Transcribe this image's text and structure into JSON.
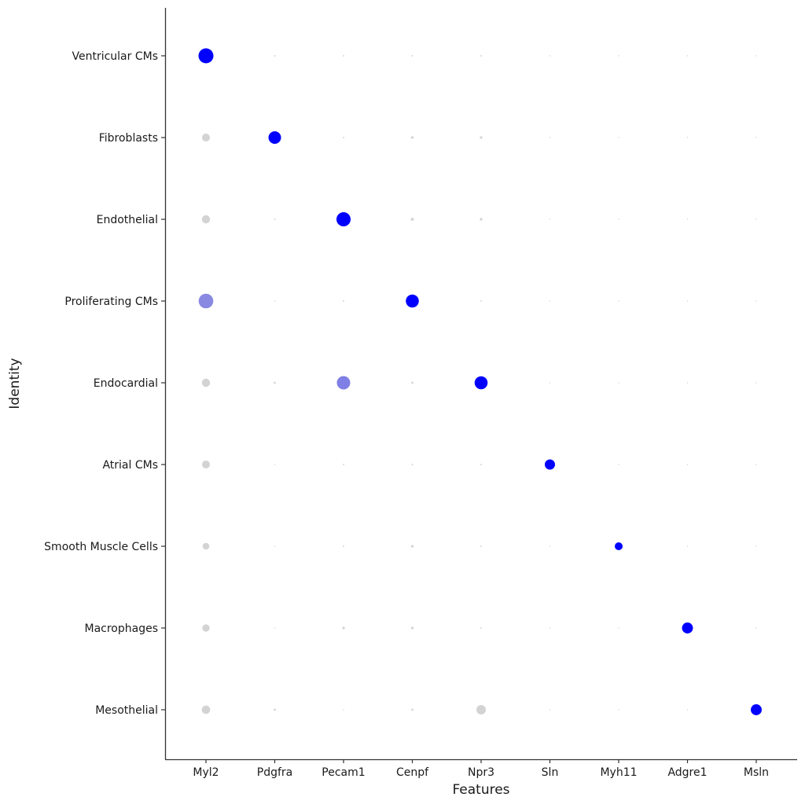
{
  "chart_data": {
    "type": "scatter",
    "subtype": "dot-plot",
    "xlabel": "Features",
    "ylabel": "Identity",
    "features": [
      "Myl2",
      "Pdgfra",
      "Pecam1",
      "Cenpf",
      "Npr3",
      "Sln",
      "Myh11",
      "Adgre1",
      "Msln"
    ],
    "identities": [
      "Ventricular CMs",
      "Fibroblasts",
      "Endothelial",
      "Proliferating CMs",
      "Endocardial",
      "Atrial CMs",
      "Smooth Muscle Cells",
      "Macrophages",
      "Mesothelial"
    ],
    "color_low": "#d3d3d3",
    "color_high": "#0000ff",
    "pct_expressed": [
      [
        100,
        1,
        1,
        1,
        1,
        0.5,
        0.5,
        0.5,
        0.5
      ],
      [
        28,
        71,
        1,
        3,
        3,
        0.5,
        0.5,
        0.5,
        0.5
      ],
      [
        30,
        1,
        90,
        4,
        3,
        0.5,
        0.5,
        0.5,
        0.5
      ],
      [
        96,
        0.5,
        1,
        76,
        1,
        0.5,
        0.5,
        0.5,
        0.5
      ],
      [
        30,
        2,
        80,
        2,
        76,
        0.5,
        0.5,
        0.5,
        0.5
      ],
      [
        28,
        0.5,
        1,
        1,
        1,
        47,
        0.5,
        0.5,
        0.5
      ],
      [
        20,
        0.5,
        1,
        3,
        1,
        0.5,
        28,
        0.5,
        0.5
      ],
      [
        24,
        0.5,
        3,
        3,
        1,
        0.5,
        0.5,
        54,
        0.5
      ],
      [
        32,
        2,
        0.5,
        2,
        40,
        0.5,
        0.5,
        0.5,
        54
      ]
    ],
    "avg_exp_scaled": [
      [
        1,
        0,
        0,
        0,
        0,
        0,
        0,
        0,
        0
      ],
      [
        0,
        1,
        0,
        0,
        0,
        0,
        0,
        0,
        0
      ],
      [
        0,
        0,
        1,
        0,
        0,
        0,
        0,
        0,
        0
      ],
      [
        0.35,
        0,
        0,
        1,
        0,
        0,
        0,
        0,
        0
      ],
      [
        0,
        0,
        0.4,
        0,
        1,
        0,
        0,
        0,
        0
      ],
      [
        0,
        0,
        0,
        0,
        0,
        1,
        0,
        0,
        0
      ],
      [
        0,
        0,
        0,
        0,
        0,
        0,
        1,
        0,
        0
      ],
      [
        0,
        0,
        0,
        0,
        0,
        0,
        0,
        1,
        0
      ],
      [
        0,
        0,
        0,
        0,
        0,
        0,
        0,
        0,
        1
      ]
    ]
  }
}
